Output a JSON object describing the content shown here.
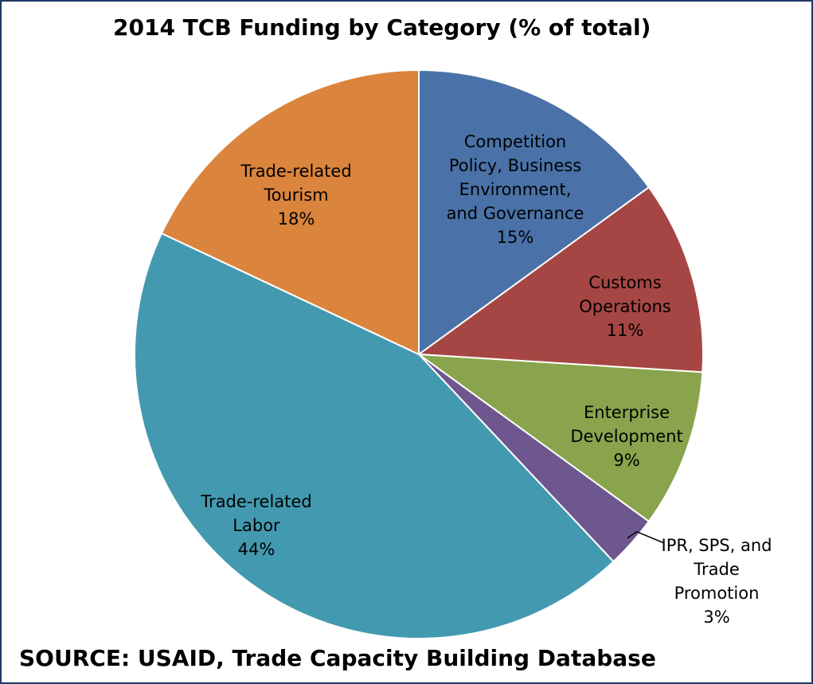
{
  "chart_data": {
    "type": "pie",
    "title": "2014 TCB Funding by Category (% of total)",
    "categories": [
      "Competition Policy, Business Environment, and Governance",
      "Customs Operations",
      "Enterprise Development",
      "IPR, SPS, and Trade Promotion",
      "Trade-related Labor",
      "Trade-related Tourism"
    ],
    "values": [
      15,
      11,
      9,
      3,
      44,
      18
    ],
    "value_labels": [
      "15%",
      "11%",
      "9%",
      "3%",
      "44%",
      "18%"
    ],
    "colors": [
      "#4a72a8",
      "#a64644",
      "#89a44d",
      "#6e568f",
      "#4399b0",
      "#db843d"
    ],
    "source": "SOURCE: USAID, Trade Capacity Building Database"
  }
}
